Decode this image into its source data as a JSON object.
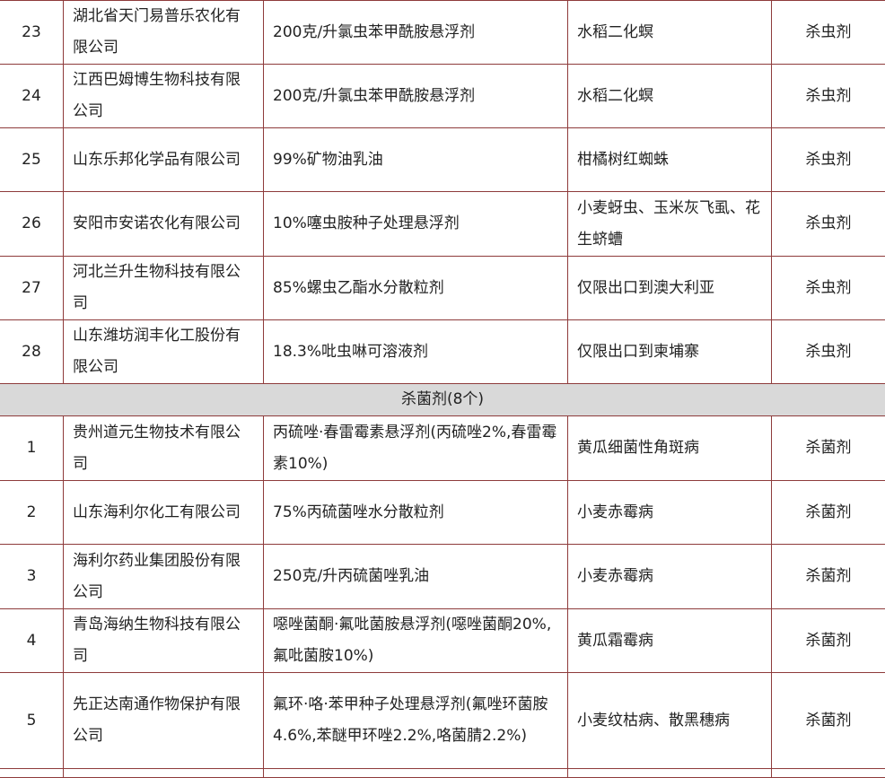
{
  "rows_before": [
    {
      "no": "23",
      "company": "湖北省天门易普乐农化有限公司",
      "product": "200克/升氯虫苯甲酰胺悬浮剂",
      "scope": "水稻二化螟",
      "type": "杀虫剂"
    },
    {
      "no": "24",
      "company": "江西巴姆博生物科技有限公司",
      "product": "200克/升氯虫苯甲酰胺悬浮剂",
      "scope": "水稻二化螟",
      "type": "杀虫剂"
    },
    {
      "no": "25",
      "company": "山东乐邦化学品有限公司",
      "product": "99%矿物油乳油",
      "scope": "柑橘树红蜘蛛",
      "type": "杀虫剂"
    },
    {
      "no": "26",
      "company": "安阳市安诺农化有限公司",
      "product": "10%噻虫胺种子处理悬浮剂",
      "scope": "小麦蚜虫、玉米灰飞虱、花生蛴螬",
      "type": "杀虫剂"
    },
    {
      "no": "27",
      "company": "河北兰升生物科技有限公司",
      "product": "85%螺虫乙酯水分散粒剂",
      "scope": "仅限出口到澳大利亚",
      "type": "杀虫剂"
    },
    {
      "no": "28",
      "company": "山东潍坊润丰化工股份有限公司",
      "product": "18.3%吡虫啉可溶液剂",
      "scope": "仅限出口到柬埔寨",
      "type": "杀虫剂"
    }
  ],
  "section_title": "杀菌剂(8个)",
  "rows_after": [
    {
      "no": "1",
      "company": "贵州道元生物技术有限公司",
      "product": "丙硫唑·春雷霉素悬浮剂(丙硫唑2%,春雷霉素10%)",
      "scope": "黄瓜细菌性角斑病",
      "type": "杀菌剂"
    },
    {
      "no": "2",
      "company": "山东海利尔化工有限公司",
      "product": "75%丙硫菌唑水分散粒剂",
      "scope": "小麦赤霉病",
      "type": "杀菌剂"
    },
    {
      "no": "3",
      "company": "海利尔药业集团股份有限公司",
      "product": "250克/升丙硫菌唑乳油",
      "scope": "小麦赤霉病",
      "type": "杀菌剂"
    },
    {
      "no": "4",
      "company": "青岛海纳生物科技有限公司",
      "product": "噁唑菌酮·氟吡菌胺悬浮剂(噁唑菌酮20%,氟吡菌胺10%)",
      "scope": "黄瓜霜霉病",
      "type": "杀菌剂"
    },
    {
      "no": "5",
      "company": "先正达南通作物保护有限公司",
      "product": "氟环·咯·苯甲种子处理悬浮剂(氟唑环菌胺4.6%,苯醚甲环唑2.2%,咯菌腈2.2%)",
      "scope": "小麦纹枯病、散黑穗病",
      "type": "杀菌剂"
    }
  ]
}
